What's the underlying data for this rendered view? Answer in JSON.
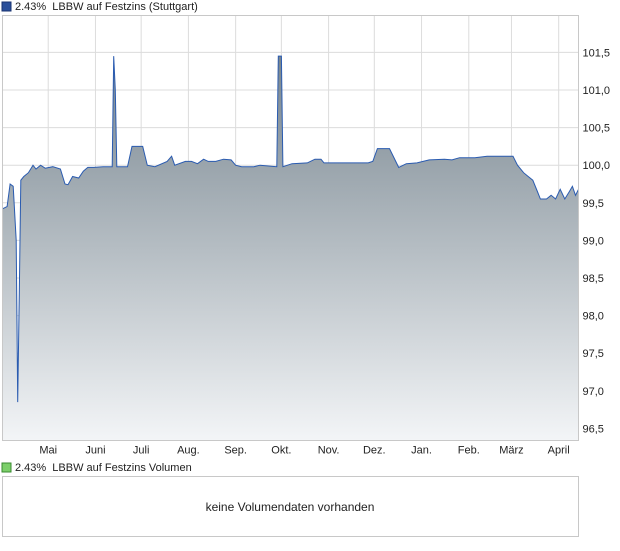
{
  "chart_data": {
    "type": "area",
    "title": "2.43%  LBBW auf Festzins (Stuttgart)",
    "color": "#2a5bb0",
    "x": [
      0,
      3,
      5,
      7,
      9,
      10,
      11,
      12,
      14,
      17,
      20,
      22,
      25,
      28,
      33,
      38,
      41,
      43,
      46,
      50,
      53,
      56,
      60,
      66,
      72,
      73,
      74,
      75,
      82,
      85,
      92,
      95,
      100,
      108,
      111,
      113,
      120,
      124,
      128,
      132,
      135,
      140,
      145,
      150,
      153,
      157,
      165,
      169,
      180,
      181,
      183,
      184,
      190,
      200,
      205,
      209,
      211,
      225,
      240,
      243,
      246,
      254,
      260,
      265,
      272,
      280,
      290,
      295,
      300,
      310,
      318,
      335,
      338,
      342,
      345,
      348,
      351,
      353,
      357,
      360,
      363,
      366,
      369,
      372,
      374,
      376,
      378
    ],
    "values": [
      99.42,
      99.45,
      99.75,
      99.72,
      99.0,
      96.85,
      98.3,
      99.8,
      99.85,
      99.9,
      100.0,
      99.95,
      100.0,
      99.96,
      99.98,
      99.95,
      99.75,
      99.74,
      99.85,
      99.83,
      99.92,
      99.97,
      99.97,
      99.98,
      99.98,
      101.45,
      101.0,
      99.98,
      99.98,
      100.25,
      100.25,
      100.0,
      99.98,
      100.05,
      100.12,
      100.0,
      100.05,
      100.05,
      100.02,
      100.08,
      100.05,
      100.05,
      100.08,
      100.07,
      100.0,
      99.98,
      99.98,
      100.0,
      99.98,
      101.45,
      101.45,
      99.98,
      100.02,
      100.03,
      100.08,
      100.08,
      100.03,
      100.03,
      100.03,
      100.05,
      100.22,
      100.22,
      99.97,
      100.02,
      100.03,
      100.07,
      100.08,
      100.07,
      100.1,
      100.1,
      100.12,
      100.12,
      100.0,
      99.9,
      99.85,
      99.8,
      99.65,
      99.55,
      99.55,
      99.6,
      99.55,
      99.68,
      99.55,
      99.65,
      99.72,
      99.6,
      99.68
    ],
    "xlim": [
      0,
      378
    ],
    "xticks": [
      {
        "value": 30,
        "label": "Mai"
      },
      {
        "value": 61,
        "label": "Juni"
      },
      {
        "value": 91,
        "label": "Juli"
      },
      {
        "value": 122,
        "label": "Aug."
      },
      {
        "value": 153,
        "label": "Sep."
      },
      {
        "value": 183,
        "label": "Okt."
      },
      {
        "value": 214,
        "label": "Nov."
      },
      {
        "value": 244,
        "label": "Dez."
      },
      {
        "value": 275,
        "label": "Jan."
      },
      {
        "value": 306,
        "label": "Feb."
      },
      {
        "value": 334,
        "label": "März"
      },
      {
        "value": 365,
        "label": "April"
      }
    ],
    "ylim": [
      96.34,
      101.99
    ],
    "yticks": [
      {
        "value": 96.5,
        "label": "96,5"
      },
      {
        "value": 97,
        "label": "97,0"
      },
      {
        "value": 97.5,
        "label": "97,5"
      },
      {
        "value": 98,
        "label": "98,0"
      },
      {
        "value": 98.5,
        "label": "98,5"
      },
      {
        "value": 99,
        "label": "99,0"
      },
      {
        "value": 99.5,
        "label": "99,5"
      },
      {
        "value": 100,
        "label": "100,0"
      },
      {
        "value": 100.5,
        "label": "100,5"
      },
      {
        "value": 101,
        "label": "101,0"
      },
      {
        "value": 101.5,
        "label": "101,5"
      }
    ],
    "grid": true
  },
  "volume": {
    "title": "2.43%  LBBW auf Festzins Volumen",
    "message": "keine Volumendaten vorhanden",
    "color": "#7ccf6a"
  }
}
